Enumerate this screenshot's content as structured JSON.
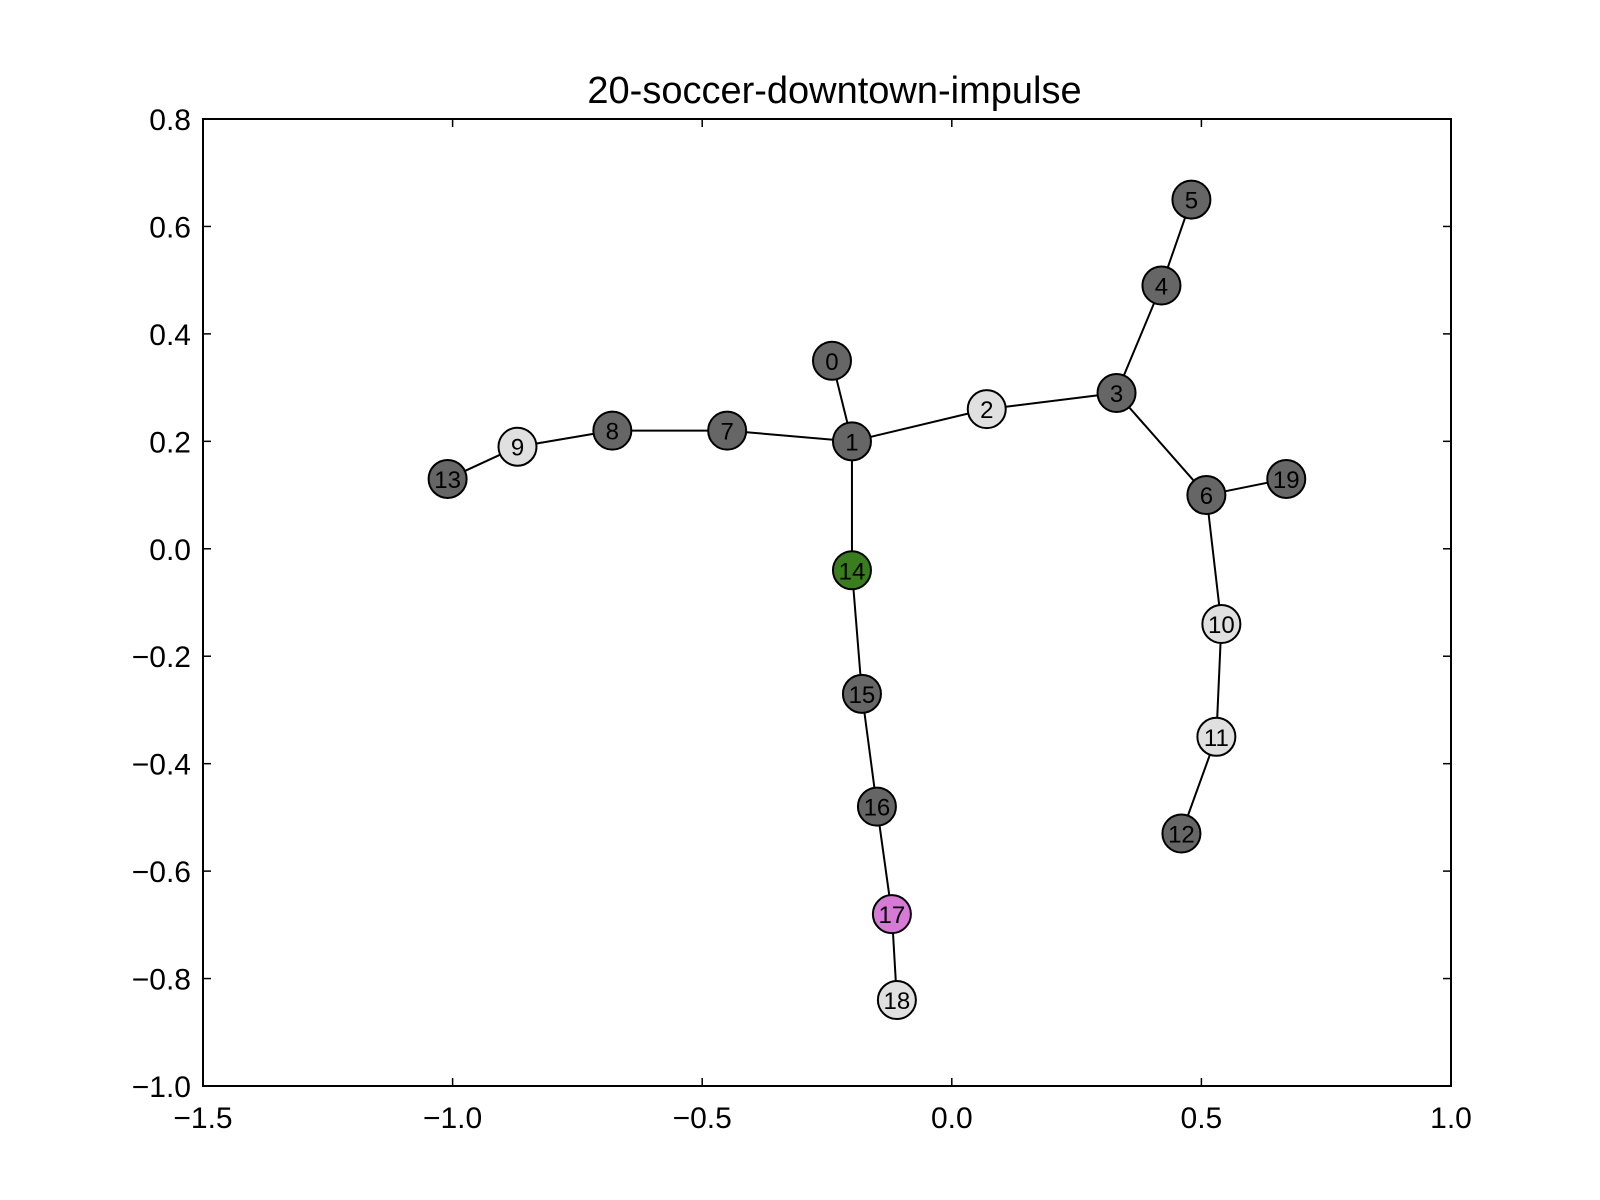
{
  "chart_data": {
    "type": "scatter",
    "title": "20-soccer-downtown-impulse",
    "xlabel": "",
    "ylabel": "",
    "xlim": [
      -1.5,
      1.0
    ],
    "ylim": [
      -1.0,
      0.8
    ],
    "xticks": [
      -1.5,
      -1.0,
      -0.5,
      0.0,
      0.5,
      1.0
    ],
    "xtick_labels": [
      "−1.5",
      "−1.0",
      "−0.5",
      "0.0",
      "0.5",
      "1.0"
    ],
    "yticks": [
      0.8,
      0.6,
      0.4,
      0.2,
      0.0,
      -0.2,
      -0.4,
      -0.6,
      -0.8,
      -1.0
    ],
    "ytick_labels": [
      "0.8",
      "0.6",
      "0.4",
      "0.2",
      "0.0",
      "−0.2",
      "−0.4",
      "−0.6",
      "−0.8",
      "−1.0"
    ],
    "grid": false,
    "nodes": [
      {
        "id": "0",
        "x": -0.24,
        "y": 0.35,
        "color": "#666666"
      },
      {
        "id": "1",
        "x": -0.2,
        "y": 0.2,
        "color": "#666666"
      },
      {
        "id": "2",
        "x": 0.07,
        "y": 0.26,
        "color": "#e0e0e0"
      },
      {
        "id": "3",
        "x": 0.33,
        "y": 0.29,
        "color": "#666666"
      },
      {
        "id": "4",
        "x": 0.42,
        "y": 0.49,
        "color": "#666666"
      },
      {
        "id": "5",
        "x": 0.48,
        "y": 0.65,
        "color": "#666666"
      },
      {
        "id": "6",
        "x": 0.51,
        "y": 0.1,
        "color": "#666666"
      },
      {
        "id": "7",
        "x": -0.45,
        "y": 0.22,
        "color": "#666666"
      },
      {
        "id": "8",
        "x": -0.68,
        "y": 0.22,
        "color": "#666666"
      },
      {
        "id": "9",
        "x": -0.87,
        "y": 0.19,
        "color": "#e0e0e0"
      },
      {
        "id": "10",
        "x": 0.54,
        "y": -0.14,
        "color": "#e0e0e0"
      },
      {
        "id": "11",
        "x": 0.53,
        "y": -0.35,
        "color": "#e0e0e0"
      },
      {
        "id": "12",
        "x": 0.46,
        "y": -0.53,
        "color": "#666666"
      },
      {
        "id": "13",
        "x": -1.01,
        "y": 0.13,
        "color": "#666666"
      },
      {
        "id": "14",
        "x": -0.2,
        "y": -0.04,
        "color": "#3a7d1e"
      },
      {
        "id": "15",
        "x": -0.18,
        "y": -0.27,
        "color": "#666666"
      },
      {
        "id": "16",
        "x": -0.15,
        "y": -0.48,
        "color": "#666666"
      },
      {
        "id": "17",
        "x": -0.12,
        "y": -0.68,
        "color": "#d67ad6"
      },
      {
        "id": "18",
        "x": -0.11,
        "y": -0.84,
        "color": "#e0e0e0"
      },
      {
        "id": "19",
        "x": 0.67,
        "y": 0.13,
        "color": "#666666"
      }
    ],
    "edges": [
      [
        "0",
        "1"
      ],
      [
        "1",
        "2"
      ],
      [
        "2",
        "3"
      ],
      [
        "3",
        "4"
      ],
      [
        "4",
        "5"
      ],
      [
        "3",
        "6"
      ],
      [
        "6",
        "19"
      ],
      [
        "6",
        "10"
      ],
      [
        "10",
        "11"
      ],
      [
        "11",
        "12"
      ],
      [
        "1",
        "7"
      ],
      [
        "7",
        "8"
      ],
      [
        "8",
        "9"
      ],
      [
        "9",
        "13"
      ],
      [
        "1",
        "14"
      ],
      [
        "14",
        "15"
      ],
      [
        "15",
        "16"
      ],
      [
        "16",
        "17"
      ],
      [
        "17",
        "18"
      ]
    ]
  }
}
